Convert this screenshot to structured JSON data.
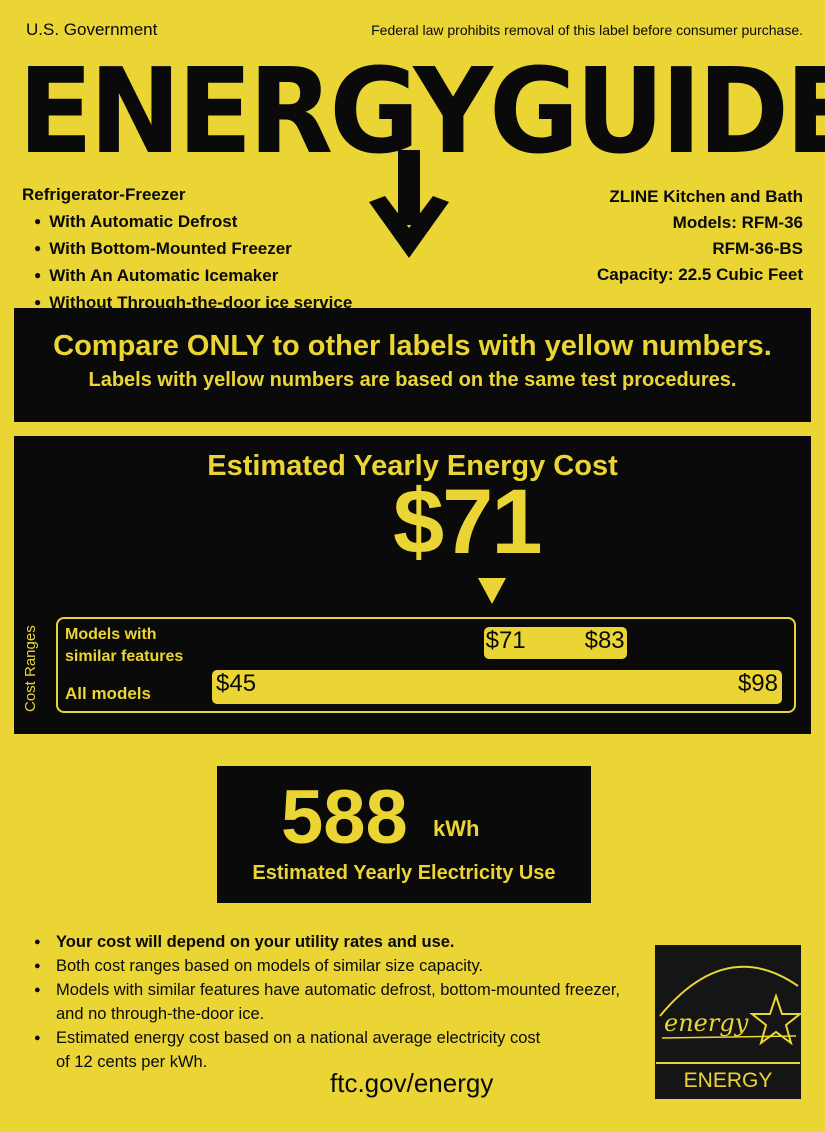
{
  "header": {
    "government": "U.S. Government",
    "notice": "Federal law prohibits removal of this label before consumer purchase.",
    "title": "ENERGYGUIDE"
  },
  "appliance": {
    "type": "Refrigerator-Freezer",
    "features": [
      "With Automatic Defrost",
      "With Bottom-Mounted Freezer",
      "With An Automatic Icemaker",
      "Without Through-the-door ice service"
    ]
  },
  "manufacturer": {
    "name": "ZLINE Kitchen and Bath",
    "models": "Models: RFM-36",
    "model2": "RFM-36-BS",
    "capacity": "Capacity: 22.5 Cubic Feet"
  },
  "compare": {
    "line1": "Compare ONLY to other labels with yellow numbers.",
    "line2": "Labels with yellow numbers are based on the same test procedures."
  },
  "cost": {
    "heading": "Estimated Yearly Energy Cost",
    "value": "$71",
    "value_num": 71,
    "ranges_label": "Cost Ranges",
    "similar": {
      "label1": "Models with",
      "label2": "similar features",
      "low": "$71",
      "high": "$83",
      "low_num": 71,
      "high_num": 83
    },
    "all": {
      "label": "All models",
      "low": "$45",
      "high": "$98",
      "low_num": 45,
      "high_num": 98
    }
  },
  "electricity": {
    "value": "588",
    "unit": "kWh",
    "label": "Estimated Yearly Electricity Use"
  },
  "notes": [
    "Your cost will depend on your utility rates and use.",
    "Both cost ranges based on models of similar size capacity.",
    "Models with similar features have automatic defrost, bottom-mounted freezer,",
    "and no through-the-door ice.",
    "Estimated energy cost based on a national average electricity cost",
    "of 12 cents per kWh."
  ],
  "footer": {
    "link": "ftc.gov/energy"
  },
  "energy_star": {
    "script": "energy",
    "label": "ENERGY STAR"
  },
  "colors": {
    "yellow": "#ebd535",
    "black": "#0a0a0a"
  }
}
